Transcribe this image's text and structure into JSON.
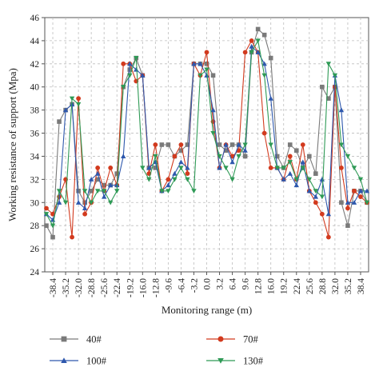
{
  "chart_data": {
    "type": "line",
    "xlabel": "Monitoring range (m)",
    "ylabel": "Working resistance of support (Mpa)",
    "ylim": [
      24,
      46
    ],
    "xlim": [
      -40.4,
      40.4
    ],
    "yticks": [
      24,
      26,
      28,
      30,
      32,
      34,
      36,
      38,
      40,
      42,
      44,
      46
    ],
    "xtick_labels": [
      "-38.4",
      "-35.2",
      "-32.0",
      "-28.8",
      "-25.6",
      "-22.4",
      "-19.2",
      "-16.0",
      "-12.8",
      "-9.6",
      "-6.4",
      "-3.2",
      "0.0",
      "3.2",
      "6.4",
      "9.6",
      "12.8",
      "16.0",
      "19.2",
      "22.4",
      "25.6",
      "28.8",
      "32.0",
      "35.2",
      "38.4"
    ],
    "grid": true,
    "legend_position": "bottom",
    "x": [
      -40.0,
      -38.4,
      -36.8,
      -35.2,
      -33.6,
      -32.0,
      -30.4,
      -28.8,
      -27.2,
      -25.6,
      -24.0,
      -22.4,
      -20.8,
      -19.2,
      -17.6,
      -16.0,
      -14.4,
      -12.8,
      -11.2,
      -9.6,
      -8.0,
      -6.4,
      -4.8,
      -3.2,
      -1.6,
      0.0,
      1.6,
      3.2,
      4.8,
      6.4,
      8.0,
      9.6,
      11.2,
      12.8,
      14.4,
      16.0,
      17.6,
      19.2,
      20.8,
      22.4,
      24.0,
      25.6,
      27.2,
      28.8,
      30.4,
      32.0,
      33.6,
      35.2,
      36.8,
      38.4,
      40.0
    ],
    "series": [
      {
        "name": "40#",
        "color": "#7a7a7a",
        "marker": "square",
        "values": [
          28,
          27,
          37,
          38,
          38.5,
          31,
          30,
          31,
          32,
          31.5,
          31.5,
          32.5,
          40,
          41.5,
          42.5,
          41,
          33,
          33,
          35,
          35,
          34,
          34.5,
          35,
          42,
          42,
          42,
          41,
          35,
          34.5,
          35,
          35,
          34,
          43,
          45,
          44.5,
          42.5,
          34,
          33,
          35,
          34.5,
          33,
          34,
          32.5,
          40,
          39,
          40,
          30,
          28,
          31,
          31,
          30
        ]
      },
      {
        "name": "70#",
        "color": "#d23a1e",
        "marker": "circle",
        "values": [
          29.5,
          29,
          30.5,
          32,
          27,
          39,
          29,
          30,
          33,
          31,
          33,
          31.5,
          42,
          42,
          40.5,
          41,
          32.5,
          35,
          31,
          32,
          34,
          35,
          32.5,
          42,
          41,
          43,
          37,
          33,
          35,
          34,
          34.5,
          43,
          44,
          43,
          36,
          33,
          33,
          32,
          34,
          32,
          35,
          31,
          30,
          29,
          27,
          40,
          33,
          29.5,
          31,
          30.5,
          30
        ]
      },
      {
        "name": "100#",
        "color": "#2e58ad",
        "marker": "triangle",
        "values": [
          29,
          28.5,
          30,
          38,
          38.5,
          30,
          29.5,
          32,
          32.5,
          30.5,
          31.5,
          31.5,
          34,
          42,
          41.5,
          41,
          33,
          33.5,
          31,
          31.5,
          32.5,
          33.5,
          33,
          42,
          42,
          41,
          38,
          33,
          35,
          33.5,
          35,
          34.5,
          43.5,
          43,
          42,
          39,
          33,
          32,
          32.5,
          31.5,
          33.5,
          31,
          30.5,
          32,
          29,
          41,
          38,
          30,
          30,
          31,
          31
        ]
      },
      {
        "name": "130#",
        "color": "#2f9a56",
        "marker": "triangle-down",
        "values": [
          29,
          28,
          31,
          30,
          39,
          38.5,
          31,
          30,
          31,
          31,
          30,
          31,
          40,
          41,
          42.5,
          33,
          32,
          34,
          31,
          31,
          32,
          33,
          32,
          31,
          41,
          41.5,
          36,
          34,
          33,
          32,
          34,
          35,
          43,
          44,
          41,
          35,
          33,
          33,
          33.5,
          32,
          33,
          32,
          31,
          30.5,
          42,
          41,
          35,
          34,
          33,
          32,
          30
        ]
      }
    ]
  }
}
